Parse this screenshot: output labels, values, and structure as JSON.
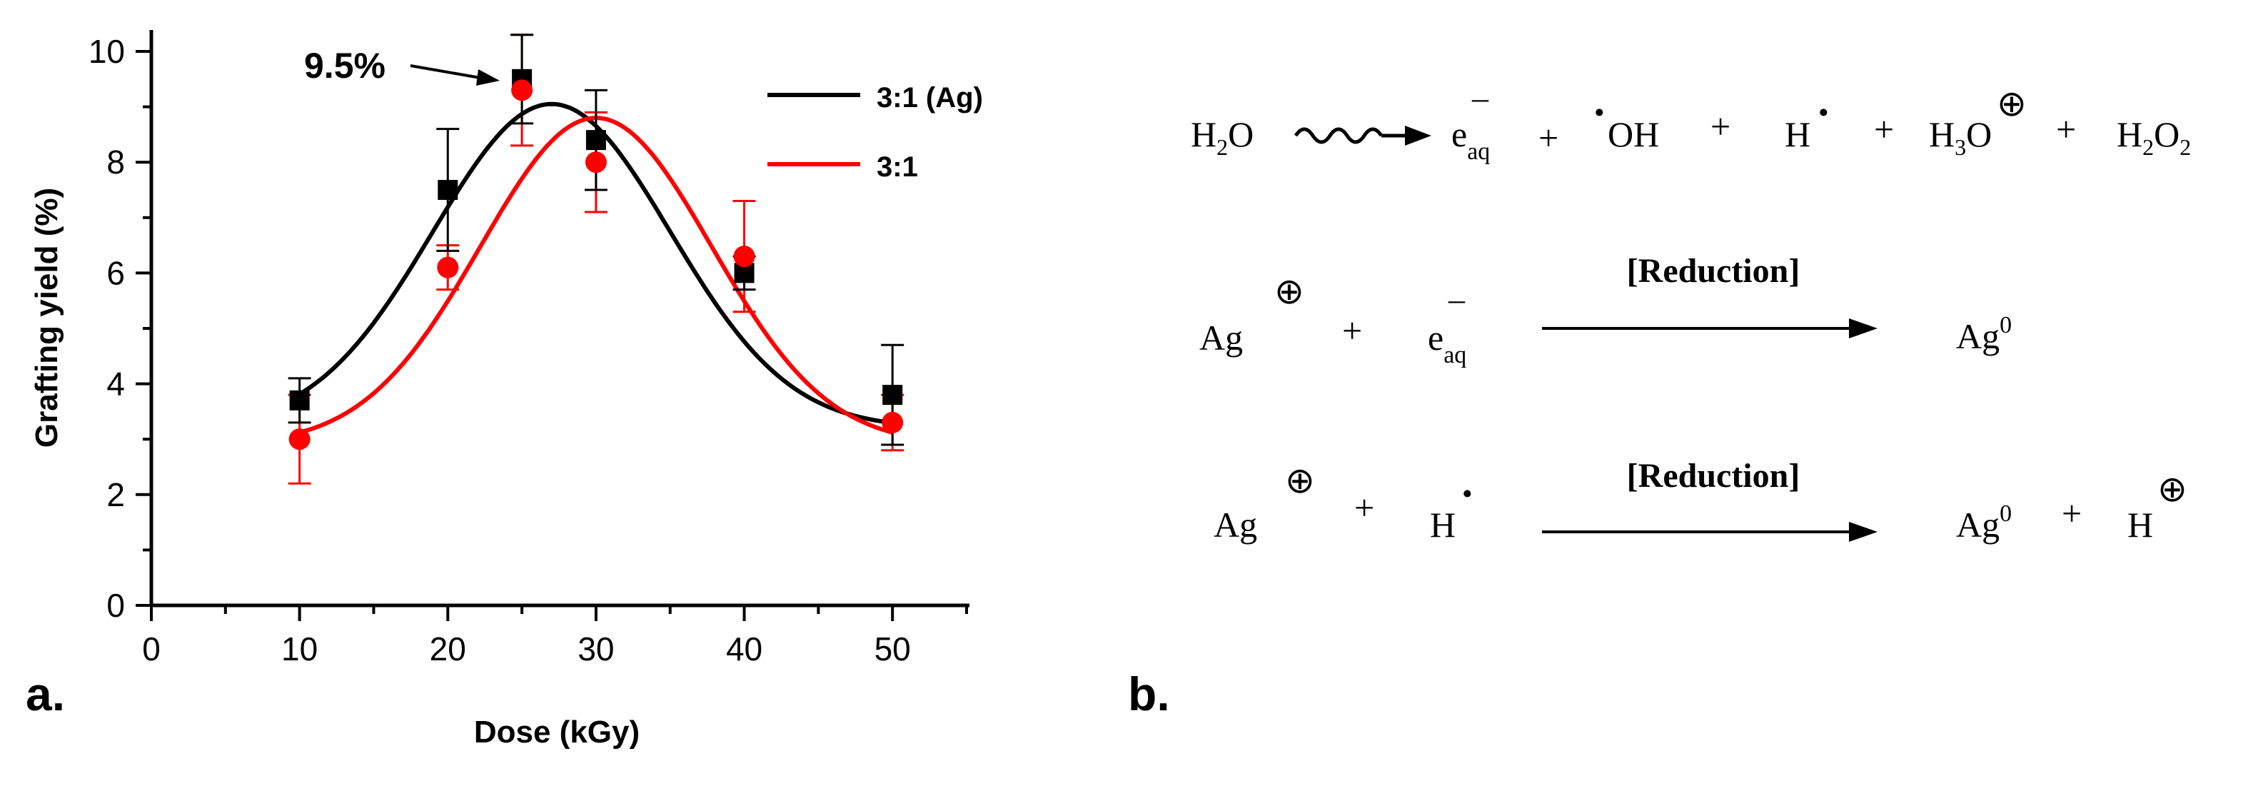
{
  "chart_data": {
    "type": "scatter",
    "panel_label": "a.",
    "xlabel": "Dose (kGy)",
    "ylabel": "Grafting yield (%)",
    "xlim": [
      0,
      55
    ],
    "ylim": [
      0,
      10
    ],
    "x_ticks": [
      "0",
      "10",
      "20",
      "30",
      "40",
      "50"
    ],
    "y_ticks": [
      "0",
      "2",
      "4",
      "6",
      "8",
      "10"
    ],
    "grid": false,
    "legend_position": "top-right",
    "annotation": {
      "text": "9.5%",
      "points_to": {
        "x": 25,
        "y": 9.5
      }
    },
    "series": [
      {
        "name": "3:1 (Ag)",
        "color": "#000000",
        "marker": "square",
        "x": [
          10,
          20,
          25,
          30,
          40,
          50
        ],
        "y": [
          3.7,
          7.5,
          9.5,
          8.4,
          6.0,
          3.8
        ],
        "error": [
          0.4,
          1.1,
          0.8,
          0.9,
          0.3,
          0.9
        ]
      },
      {
        "name": "3:1",
        "color": "#ff0000",
        "marker": "circle",
        "x": [
          10,
          20,
          25,
          30,
          40,
          50
        ],
        "y": [
          3.0,
          6.1,
          9.3,
          8.0,
          6.3,
          3.3
        ],
        "error": [
          0.8,
          0.4,
          1.0,
          0.9,
          1.0,
          0.5
        ]
      }
    ],
    "fit_curves": [
      {
        "series": "3:1 (Ag)",
        "color": "#000000",
        "kind": "gaussian",
        "baseline": 3.2,
        "amplitude": 5.85,
        "center": 27.0,
        "sigma": 8.0
      },
      {
        "series": "3:1",
        "color": "#ff0000",
        "kind": "gaussian",
        "baseline": 2.9,
        "amplitude": 5.9,
        "center": 30.0,
        "sigma": 7.8
      }
    ]
  },
  "scheme": {
    "panel_label": "b.",
    "reduction_label": "[Reduction]",
    "water": "H",
    "water_sub": "2",
    "water_end": "O",
    "electron": "e",
    "electron_sub": "aq",
    "electron_sup": "–",
    "dot": "·",
    "oh": "OH",
    "h": "H",
    "hydronium": "H",
    "hydronium_sub": "3",
    "hydronium_end": "O",
    "peroxide": "H",
    "peroxide_sub": "2",
    "peroxide_mid": "O",
    "peroxide_sub2": "2",
    "plus": "+",
    "cation_sup": "⊕",
    "silver": "Ag",
    "zero_sup": "0"
  }
}
